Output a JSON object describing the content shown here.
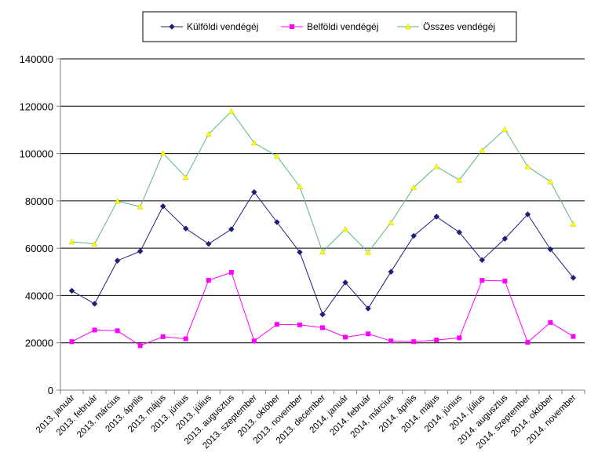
{
  "chart_data": {
    "type": "line",
    "title": "",
    "xlabel": "",
    "ylabel": "",
    "ylim": [
      0,
      140000
    ],
    "yticks": [
      0,
      20000,
      40000,
      60000,
      80000,
      100000,
      120000,
      140000
    ],
    "grid": true,
    "legend_position": "top-center",
    "categories": [
      "2013. január",
      "2013. február",
      "2013. március",
      "2013. április",
      "2013. május",
      "2013. június",
      "2013. július",
      "2013. augusztus",
      "2013. szeptember",
      "2013. október",
      "2013. november",
      "2013. december",
      "2014. január",
      "2014. február",
      "2014. március",
      "2014. április",
      "2014. május",
      "2014. június",
      "2014. július",
      "2014. augusztus",
      "2014. szeptember",
      "2014. október",
      "2014. november"
    ],
    "series": [
      {
        "name": "Külföldi vendégéj",
        "color": "#1f1f7a",
        "marker": "diamond",
        "values": [
          42000,
          36500,
          54700,
          58700,
          77700,
          68300,
          61800,
          68000,
          83700,
          71000,
          58300,
          32000,
          45500,
          34500,
          50000,
          65200,
          73300,
          66700,
          55000,
          64000,
          74300,
          59500,
          47500
        ]
      },
      {
        "name": "Belföldi vendégéj",
        "color": "#ff00ff",
        "marker": "square",
        "values": [
          20500,
          25400,
          25100,
          18800,
          22600,
          21700,
          46400,
          49800,
          20800,
          27800,
          27600,
          26400,
          22400,
          23800,
          20800,
          20500,
          21200,
          22100,
          46400,
          46100,
          20200,
          28600,
          22700
        ]
      },
      {
        "name": "Összes vendégéj",
        "color": "#5cb87a",
        "marker_color": "#ffff00",
        "marker": "triangle",
        "values": [
          62700,
          61800,
          79900,
          77500,
          100200,
          90000,
          108200,
          117800,
          104500,
          98900,
          86000,
          58500,
          68000,
          58300,
          70800,
          85700,
          94500,
          88800,
          101400,
          110200,
          94500,
          88100,
          70200
        ]
      }
    ]
  }
}
